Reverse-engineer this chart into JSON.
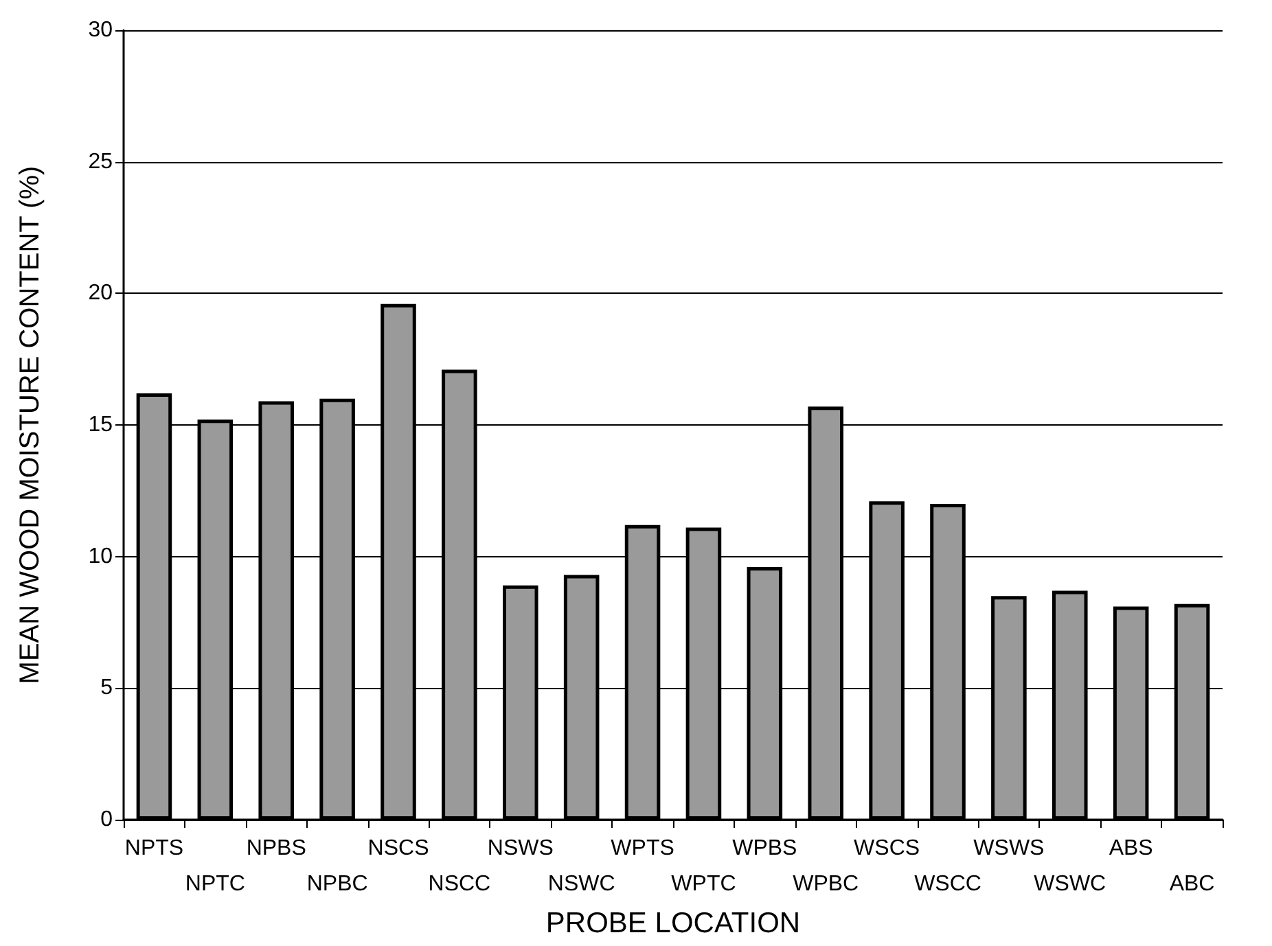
{
  "chart_data": {
    "type": "bar",
    "xlabel": "PROBE LOCATION",
    "ylabel": "MEAN WOOD MOISTURE CONTENT (%)",
    "categories": [
      "NPTS",
      "NPTC",
      "NPBS",
      "NPBC",
      "NSCS",
      "NSCC",
      "NSWS",
      "NSWC",
      "WPTS",
      "WPTC",
      "WPBS",
      "WPBC",
      "WSCS",
      "WSCC",
      "WSWS",
      "WSWC",
      "ABS",
      "ABC"
    ],
    "values": [
      16.2,
      15.2,
      15.9,
      16.0,
      19.6,
      17.1,
      8.9,
      9.3,
      11.2,
      11.1,
      9.6,
      15.7,
      12.1,
      12.0,
      8.5,
      8.7,
      8.1,
      8.2
    ],
    "color": "#9a9a9a",
    "ylim": [
      0,
      30
    ],
    "yticks": [
      0,
      5,
      10,
      15,
      20,
      25,
      30
    ],
    "grid": "y"
  }
}
